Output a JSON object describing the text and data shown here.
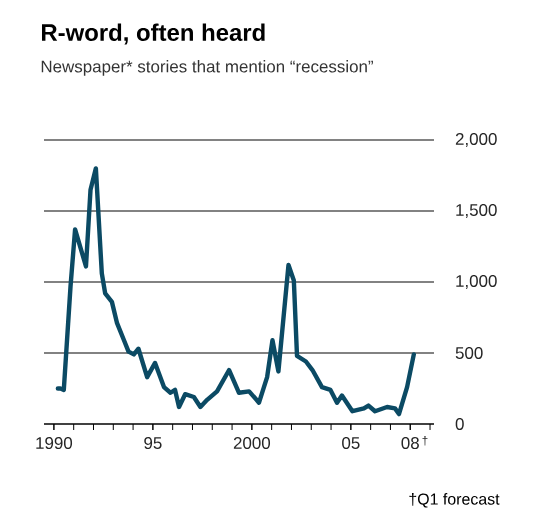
{
  "chart_data": {
    "type": "line",
    "title": "R-word, often heard",
    "subtitle": "Newspaper* stories that mention “recession”",
    "x": [
      1990.2,
      1990.33,
      1990.5,
      1990.84,
      1991.07,
      1991.62,
      1991.85,
      1992.12,
      1992.42,
      1992.59,
      1992.93,
      1993.19,
      1993.54,
      1993.77,
      1994.04,
      1994.27,
      1994.71,
      1995.11,
      1995.56,
      1995.89,
      1996.12,
      1996.32,
      1996.63,
      1997.07,
      1997.4,
      1997.74,
      1998.24,
      1998.85,
      1999.35,
      1999.86,
      2000.36,
      2000.77,
      2001.04,
      2001.34,
      2001.85,
      2002.12,
      2002.28,
      2002.73,
      2003.06,
      2003.54,
      2003.97,
      2004.3,
      2004.55,
      2005.08,
      2005.66,
      2005.89,
      2006.22,
      2006.83,
      2007.23,
      2007.43,
      2007.84,
      2008.18
    ],
    "series": [
      {
        "color": "#0b4a64",
        "values": [
          250,
          250,
          240,
          970,
          1370,
          1110,
          1650,
          1800,
          1060,
          920,
          860,
          710,
          590,
          510,
          490,
          530,
          330,
          430,
          260,
          220,
          240,
          120,
          210,
          190,
          120,
          170,
          230,
          380,
          220,
          230,
          150,
          330,
          590,
          370,
          1120,
          1010,
          480,
          440,
          380,
          260,
          240,
          150,
          200,
          90,
          110,
          130,
          90,
          120,
          110,
          70,
          260,
          490
        ]
      }
    ],
    "xlim": [
      1989.5,
      2009.2
    ],
    "xticks": [
      {
        "value": 1990,
        "label": null
      },
      {
        "value": 1991,
        "label": null
      },
      {
        "value": 1992,
        "label": null
      },
      {
        "value": 1993,
        "label": null
      },
      {
        "value": 1994,
        "label": null
      },
      {
        "value": 1995,
        "label": null
      },
      {
        "value": 1996,
        "label": null
      },
      {
        "value": 1997,
        "label": null
      },
      {
        "value": 1998,
        "label": null
      },
      {
        "value": 1999,
        "label": null
      },
      {
        "value": 2000,
        "label": null
      },
      {
        "value": 2001,
        "label": null
      },
      {
        "value": 2002,
        "label": null
      },
      {
        "value": 2003,
        "label": null
      },
      {
        "value": 2004,
        "label": null
      },
      {
        "value": 2005,
        "label": null
      },
      {
        "value": 2006,
        "label": null
      },
      {
        "value": 2007,
        "label": null
      },
      {
        "value": 2008,
        "label": null
      },
      {
        "value": 2009,
        "label": null
      },
      {
        "value": 1990,
        "label": "1990"
      },
      {
        "value": 1995,
        "label": "95"
      },
      {
        "value": 2000,
        "label": "2000"
      },
      {
        "value": 2005,
        "label": "05"
      },
      {
        "value": 2008,
        "label": "08"
      }
    ],
    "ylim": [
      0,
      2000
    ],
    "yticks": [
      0,
      {
        "value": 500,
        "label": "500"
      },
      {
        "value": 1000,
        "label": "1,000"
      },
      {
        "value": 1500,
        "label": "1,500"
      },
      {
        "value": 2000,
        "label": "2,000"
      }
    ],
    "grid": "y",
    "line_style": "solid",
    "annotations": [
      "†Q1 forecast",
      "†"
    ]
  }
}
